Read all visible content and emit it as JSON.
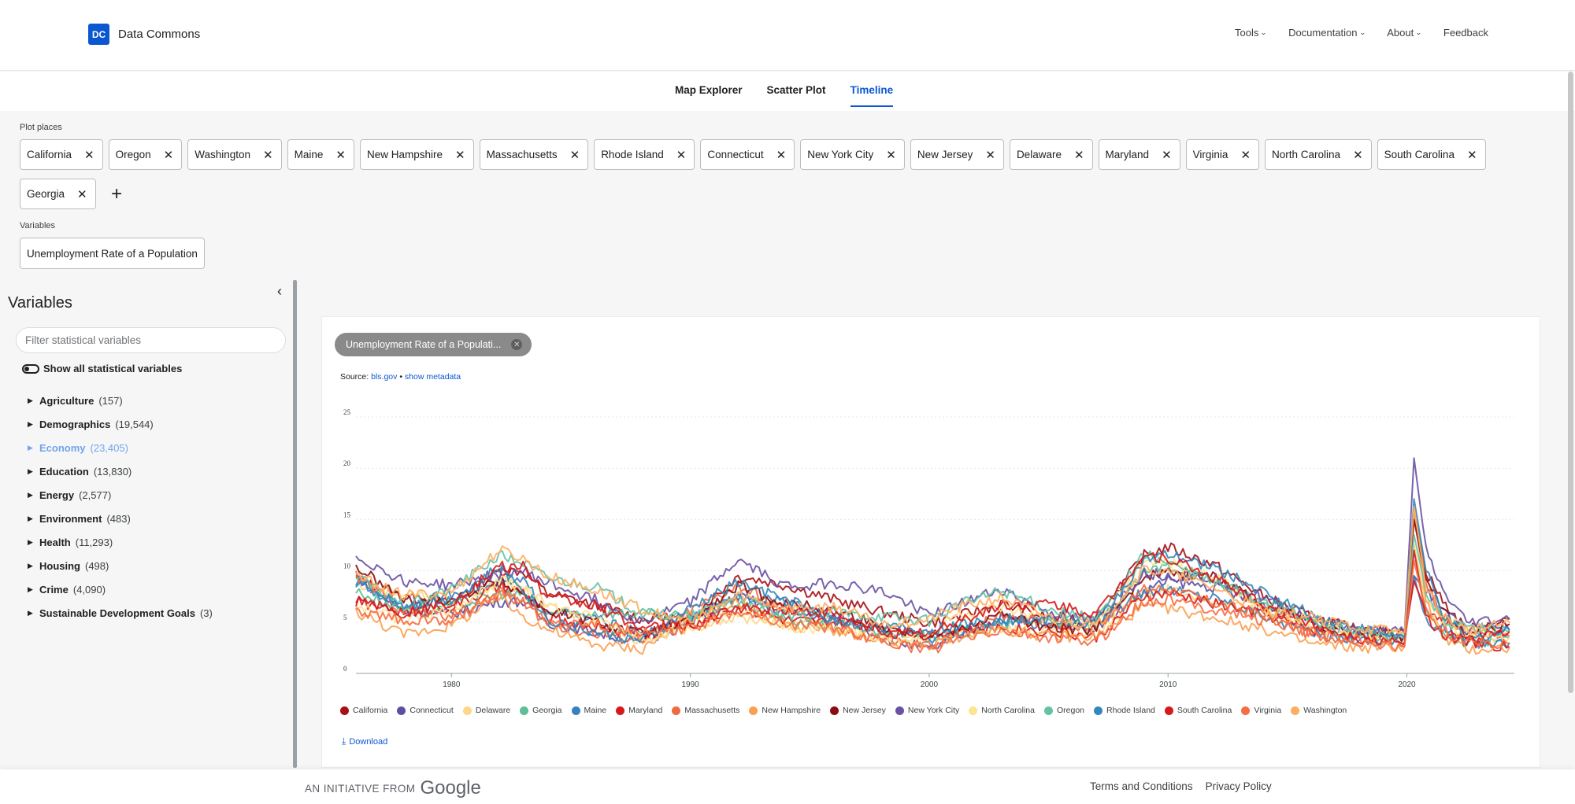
{
  "brand": {
    "logo_mark": "DC",
    "name": "Data Commons"
  },
  "nav": {
    "items": [
      {
        "label": "Tools",
        "dropdown": true
      },
      {
        "label": "Documentation",
        "dropdown": true
      },
      {
        "label": "About",
        "dropdown": true
      },
      {
        "label": "Feedback",
        "dropdown": false
      }
    ]
  },
  "tabs": [
    {
      "label": "Map Explorer",
      "active": false
    },
    {
      "label": "Scatter Plot",
      "active": false
    },
    {
      "label": "Timeline",
      "active": true
    }
  ],
  "plot_places": {
    "label": "Plot places",
    "places": [
      "California",
      "Oregon",
      "Washington",
      "Maine",
      "New Hampshire",
      "Massachusetts",
      "Rhode Island",
      "Connecticut",
      "New York City",
      "New Jersey",
      "Delaware",
      "Maryland",
      "Virginia",
      "North Carolina",
      "South Carolina",
      "Georgia"
    ]
  },
  "variables_section": {
    "label": "Variables",
    "selected": "Unemployment Rate of a Population"
  },
  "sidebar": {
    "title": "Variables",
    "search_placeholder": "Filter statistical variables",
    "toggle_label": "Show all statistical variables",
    "categories": [
      {
        "name": "Agriculture",
        "count": "(157)"
      },
      {
        "name": "Demographics",
        "count": "(19,544)"
      },
      {
        "name": "Economy",
        "count": "(23,405)",
        "highlight": true
      },
      {
        "name": "Education",
        "count": "(13,830)"
      },
      {
        "name": "Energy",
        "count": "(2,577)"
      },
      {
        "name": "Environment",
        "count": "(483)"
      },
      {
        "name": "Health",
        "count": "(11,293)"
      },
      {
        "name": "Housing",
        "count": "(498)"
      },
      {
        "name": "Crime",
        "count": "(4,090)"
      },
      {
        "name": "Sustainable Development Goals",
        "count": "(3)"
      }
    ]
  },
  "chart_card": {
    "chip_label": "Unemployment Rate of a Populati...",
    "source_prefix": "Source:",
    "source_link": "bls.gov",
    "separator": "•",
    "metadata_link": "show metadata",
    "download_label": "Download"
  },
  "chart_data": {
    "type": "line",
    "ylim": [
      0,
      25
    ],
    "xlim": [
      1976,
      2024.5
    ],
    "yticks": [
      "0",
      "5",
      "10",
      "15",
      "20",
      "25"
    ],
    "xticks": [
      "1980",
      "1990",
      "2000",
      "2010",
      "2020"
    ],
    "grid": true,
    "legend_position": "bottom",
    "legend": [
      {
        "name": "California",
        "color": "#a50f15"
      },
      {
        "name": "Connecticut",
        "color": "#5e4ea2"
      },
      {
        "name": "Delaware",
        "color": "#fdd68a"
      },
      {
        "name": "Georgia",
        "color": "#5cbf97"
      },
      {
        "name": "Maine",
        "color": "#3781c0"
      },
      {
        "name": "Maryland",
        "color": "#d7191c"
      },
      {
        "name": "Massachusetts",
        "color": "#f06a3f"
      },
      {
        "name": "New Hampshire",
        "color": "#fba050"
      },
      {
        "name": "New Jersey",
        "color": "#8b0c10"
      },
      {
        "name": "New York City",
        "color": "#6a51a3"
      },
      {
        "name": "North Carolina",
        "color": "#fee390"
      },
      {
        "name": "Oregon",
        "color": "#66c2a5"
      },
      {
        "name": "Rhode Island",
        "color": "#3288bd"
      },
      {
        "name": "South Carolina",
        "color": "#d7191c"
      },
      {
        "name": "Virginia",
        "color": "#f46d43"
      },
      {
        "name": "Washington",
        "color": "#fdae61"
      }
    ],
    "x": [
      1976,
      1978,
      1980,
      1982,
      1983,
      1984,
      1986,
      1988,
      1990,
      1992,
      1994,
      1996,
      1998,
      2000,
      2001,
      2003,
      2005,
      2007,
      2009,
      2010,
      2012,
      2014,
      2016,
      2018,
      2019.9,
      2020.3,
      2020.8,
      2021.5,
      2022.5,
      2024.3
    ],
    "series": [
      {
        "name": "California",
        "values": [
          9.2,
          7.5,
          6.8,
          10.0,
          10.0,
          7.8,
          6.7,
          5.3,
          5.5,
          9.5,
          8.6,
          7.2,
          6.0,
          4.9,
          5.4,
          6.8,
          5.4,
          5.4,
          11.5,
          12.3,
          10.5,
          7.5,
          5.5,
          4.2,
          4.0,
          16.0,
          10.0,
          7.0,
          4.2,
          5.3
        ]
      },
      {
        "name": "Connecticut",
        "values": [
          9.5,
          6.0,
          5.8,
          7.0,
          7.0,
          5.0,
          4.0,
          3.0,
          5.0,
          7.5,
          5.9,
          5.6,
          3.6,
          2.3,
          3.3,
          5.4,
          5.0,
          4.5,
          8.0,
          9.0,
          8.4,
          6.6,
          5.3,
          4.0,
          3.6,
          9.5,
          8.0,
          6.3,
          4.2,
          4.2
        ]
      },
      {
        "name": "Delaware",
        "values": [
          8.6,
          7.8,
          7.2,
          8.7,
          8.2,
          6.6,
          4.9,
          3.2,
          5.0,
          5.4,
          5.0,
          5.4,
          3.6,
          3.8,
          3.8,
          4.5,
          4.1,
          3.7,
          8.0,
          8.3,
          7.0,
          5.9,
          4.5,
          3.8,
          3.8,
          12.5,
          7.0,
          5.5,
          4.3,
          4.2
        ]
      },
      {
        "name": "Georgia",
        "values": [
          8.0,
          6.2,
          6.5,
          7.8,
          7.6,
          5.9,
          5.9,
          5.8,
          5.5,
          7.0,
          5.2,
          4.6,
          4.2,
          3.5,
          4.1,
          4.7,
          5.2,
          4.5,
          9.8,
          10.5,
          9.0,
          7.0,
          5.3,
          3.8,
          3.4,
          12.5,
          6.0,
          3.8,
          3.0,
          3.4
        ]
      },
      {
        "name": "Maine",
        "values": [
          8.9,
          6.5,
          7.8,
          8.6,
          9.0,
          6.1,
          5.3,
          3.8,
          5.2,
          7.5,
          7.3,
          5.1,
          4.4,
          3.4,
          3.8,
          5.0,
          4.8,
          4.7,
          8.0,
          8.2,
          7.4,
          5.7,
          3.9,
          3.3,
          3.0,
          9.5,
          5.0,
          4.5,
          3.0,
          3.0
        ]
      },
      {
        "name": "Maryland",
        "values": [
          7.0,
          6.0,
          6.5,
          8.4,
          7.9,
          5.4,
          4.5,
          3.8,
          4.5,
          6.6,
          5.1,
          4.9,
          4.6,
          3.9,
          4.1,
          4.5,
          4.1,
          3.5,
          7.5,
          7.8,
          6.8,
          5.8,
          4.3,
          3.9,
          3.5,
          9.0,
          6.0,
          5.3,
          3.0,
          2.6
        ]
      },
      {
        "name": "Massachusetts",
        "values": [
          9.5,
          6.1,
          5.6,
          7.9,
          6.9,
          4.8,
          3.8,
          3.3,
          6.0,
          8.5,
          6.2,
          4.3,
          3.3,
          2.6,
          3.7,
          5.8,
          4.8,
          4.5,
          8.2,
          8.3,
          6.8,
          5.8,
          3.7,
          3.4,
          2.9,
          16.4,
          9.0,
          5.5,
          3.6,
          3.6
        ]
      },
      {
        "name": "New Hampshire",
        "values": [
          6.0,
          3.8,
          4.7,
          7.4,
          5.6,
          4.3,
          2.8,
          2.4,
          5.6,
          7.0,
          4.6,
          4.2,
          2.9,
          2.7,
          3.5,
          4.3,
          3.6,
          3.6,
          6.5,
          6.3,
          5.4,
          4.3,
          2.9,
          2.5,
          2.6,
          16.0,
          7.0,
          3.5,
          2.3,
          2.5
        ]
      },
      {
        "name": "New Jersey",
        "values": [
          10.4,
          7.2,
          7.2,
          9.0,
          7.8,
          6.2,
          5.0,
          3.8,
          5.0,
          8.5,
          6.8,
          6.2,
          4.6,
          3.7,
          4.2,
          5.8,
          4.4,
          4.3,
          9.6,
          9.8,
          9.5,
          6.6,
          5.0,
          4.0,
          3.6,
          15.0,
          9.0,
          6.3,
          3.5,
          4.8
        ]
      },
      {
        "name": "New York City",
        "values": [
          11.4,
          9.0,
          8.6,
          9.7,
          10.0,
          8.8,
          7.2,
          5.0,
          7.0,
          11.0,
          8.5,
          8.8,
          8.0,
          5.8,
          6.5,
          8.2,
          6.0,
          5.0,
          9.8,
          9.5,
          9.3,
          7.3,
          5.3,
          4.2,
          4.0,
          21.0,
          12.0,
          8.0,
          5.0,
          5.3
        ]
      },
      {
        "name": "North Carolina",
        "values": [
          6.6,
          5.2,
          6.3,
          9.0,
          8.6,
          6.7,
          5.3,
          3.6,
          4.2,
          6.0,
          4.4,
          4.4,
          3.5,
          3.6,
          5.6,
          6.4,
          5.2,
          4.7,
          10.8,
          10.9,
          9.4,
          6.1,
          5.1,
          3.9,
          3.6,
          12.5,
          6.0,
          4.7,
          3.6,
          3.5
        ]
      },
      {
        "name": "Oregon",
        "values": [
          9.5,
          6.5,
          8.2,
          11.5,
          10.8,
          9.3,
          8.5,
          5.8,
          5.5,
          7.5,
          5.4,
          5.9,
          5.6,
          5.1,
          6.5,
          8.1,
          6.3,
          5.2,
          11.6,
          10.8,
          8.8,
          7.0,
          5.0,
          4.0,
          3.3,
          13.5,
          8.0,
          5.0,
          4.5,
          4.1
        ]
      },
      {
        "name": "Rhode Island",
        "values": [
          8.8,
          6.7,
          7.2,
          10.3,
          8.3,
          5.3,
          4.0,
          3.1,
          6.3,
          8.9,
          7.1,
          5.1,
          4.5,
          4.1,
          4.6,
          5.3,
          5.2,
          4.9,
          11.0,
          11.5,
          10.3,
          7.9,
          5.7,
          4.4,
          3.5,
          17.0,
          10.0,
          5.8,
          3.2,
          4.2
        ]
      },
      {
        "name": "South Carolina",
        "values": [
          7.4,
          5.8,
          6.9,
          10.4,
          10.4,
          7.4,
          6.6,
          4.4,
          4.7,
          6.3,
          6.2,
          5.7,
          4.1,
          3.6,
          5.0,
          6.6,
          6.8,
          5.7,
          11.5,
          11.2,
          9.2,
          6.6,
          4.9,
          3.4,
          2.8,
          12.0,
          5.5,
          3.8,
          3.2,
          4.1
        ]
      },
      {
        "name": "Virginia",
        "values": [
          6.0,
          5.2,
          5.1,
          7.6,
          7.0,
          5.1,
          4.9,
          3.9,
          4.3,
          6.2,
          4.9,
          4.4,
          3.2,
          2.2,
          3.2,
          4.1,
          3.4,
          3.1,
          7.0,
          7.2,
          6.2,
          5.2,
          4.0,
          3.0,
          2.6,
          11.0,
          6.0,
          4.2,
          3.0,
          2.9
        ]
      },
      {
        "name": "Washington",
        "values": [
          9.5,
          7.6,
          7.9,
          12.0,
          11.2,
          9.5,
          8.1,
          6.2,
          4.9,
          7.6,
          6.4,
          6.5,
          4.8,
          5.2,
          6.3,
          7.4,
          5.5,
          4.6,
          10.2,
          9.8,
          8.3,
          6.2,
          5.4,
          4.5,
          4.0,
          16.3,
          8.5,
          5.5,
          4.2,
          4.9
        ]
      }
    ]
  },
  "footer": {
    "initiative_prefix": "AN INITIATIVE FROM",
    "google_word": "Google",
    "links": [
      "Terms and Conditions",
      "Privacy Policy"
    ]
  }
}
